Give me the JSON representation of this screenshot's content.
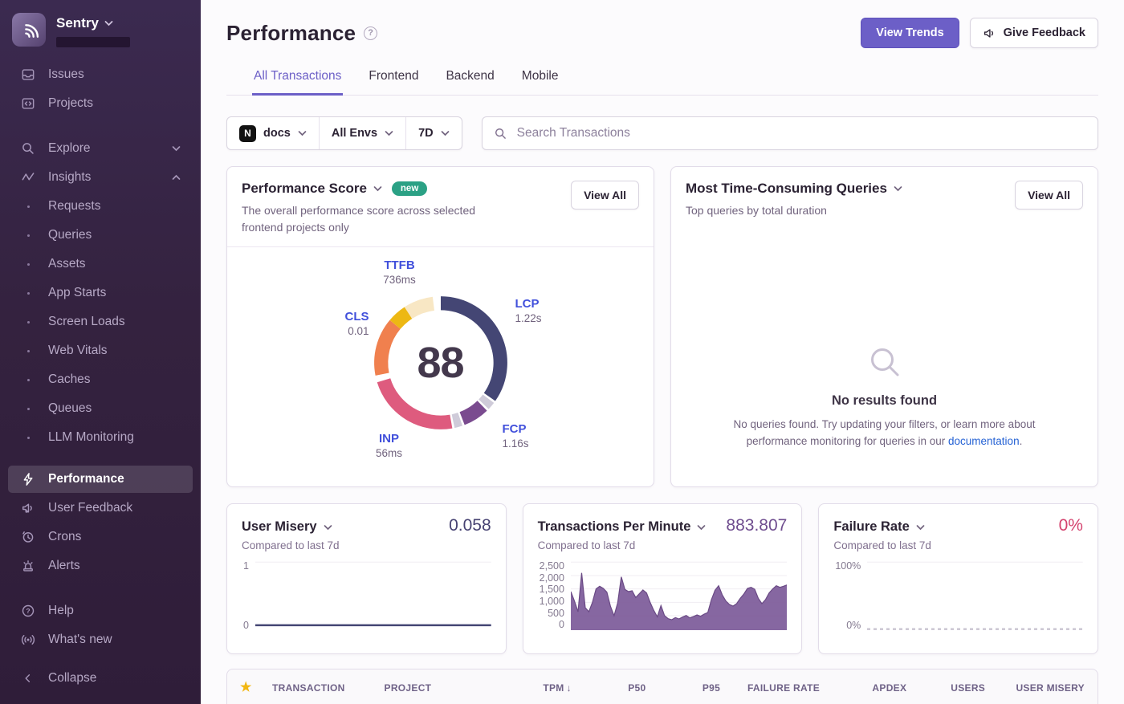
{
  "colors": {
    "accent_purple": "#6c5fc7",
    "sidebar_bg": "#34223f",
    "link_blue": "#2562d4",
    "vital_label_blue": "#4150db",
    "badge_new_teal": "#2ba185",
    "star_gold": "#f2b712",
    "user_misery_value": "#464272",
    "tpm_value": "#6f4d8f",
    "failure_rate_value": "#d4426e"
  },
  "sidebar": {
    "brand": "Sentry",
    "items_top": [
      {
        "label": "Issues"
      },
      {
        "label": "Projects"
      }
    ],
    "explore_label": "Explore",
    "insights_label": "Insights",
    "insights_children": [
      "Requests",
      "Queries",
      "Assets",
      "App Starts",
      "Screen Loads",
      "Web Vitals",
      "Caches",
      "Queues",
      "LLM Monitoring"
    ],
    "items_mid": [
      "Performance",
      "User Feedback",
      "Crons",
      "Alerts"
    ],
    "items_bottom": [
      "Help",
      "What's new"
    ],
    "collapse_label": "Collapse"
  },
  "header": {
    "title": "Performance",
    "view_trends": "View Trends",
    "give_feedback": "Give Feedback",
    "tabs": [
      "All Transactions",
      "Frontend",
      "Backend",
      "Mobile"
    ],
    "active_tab": "All Transactions"
  },
  "filters": {
    "project": "docs",
    "project_logo_letter": "N",
    "environment": "All Envs",
    "date_range": "7D",
    "search_placeholder": "Search Transactions"
  },
  "score_card": {
    "title": "Performance Score",
    "badge": "new",
    "description": "The overall performance score across selected frontend projects only",
    "view_all": "View All",
    "score": "88",
    "vitals": [
      {
        "name": "TTFB",
        "value": "736ms"
      },
      {
        "name": "LCP",
        "value": "1.22s"
      },
      {
        "name": "CLS",
        "value": "0.01"
      },
      {
        "name": "INP",
        "value": "56ms"
      },
      {
        "name": "FCP",
        "value": "1.16s"
      }
    ]
  },
  "queries_card": {
    "title": "Most Time-Consuming Queries",
    "subtitle": "Top queries by total duration",
    "view_all": "View All",
    "empty_title": "No results found",
    "empty_text_1": "No queries found. Try updating your filters, or learn more about performance monitoring for queries in our ",
    "empty_link": "documentation",
    "empty_text_2": "."
  },
  "mini_cards": [
    {
      "title": "User Misery",
      "value": "0.058",
      "value_color": "#464272",
      "subtitle": "Compared to last 7d",
      "y_top": "1",
      "y_bottom": "0"
    },
    {
      "title": "Transactions Per Minute",
      "value": "883.807",
      "value_color": "#6f4d8f",
      "subtitle": "Compared to last 7d"
    },
    {
      "title": "Failure Rate",
      "value": "0%",
      "value_color": "#d4426e",
      "subtitle": "Compared to last 7d",
      "y_top": "100%",
      "y_bottom": "0%"
    }
  ],
  "table": {
    "columns": [
      "TRANSACTION",
      "PROJECT",
      "TPM",
      "P50",
      "P95",
      "FAILURE RATE",
      "APDEX",
      "USERS",
      "USER MISERY"
    ],
    "sorted_column": "TPM",
    "sort_direction": "desc"
  },
  "chart_data": [
    {
      "type": "pie",
      "title": "Performance Score",
      "center_value": 88,
      "segments": [
        {
          "metric": "LCP",
          "value": "1.22s",
          "start": 0,
          "end": 125,
          "color": "#444674"
        },
        {
          "metric": "separator",
          "start": 127,
          "end": 134,
          "color": "#cfcbd9"
        },
        {
          "metric": "FCP",
          "value": "1.16s",
          "start": 136,
          "end": 159,
          "color": "#7a4b8f"
        },
        {
          "metric": "separator",
          "start": 161,
          "end": 168,
          "color": "#cfcbd9"
        },
        {
          "metric": "INP",
          "value": "56ms",
          "start": 170,
          "end": 253,
          "color": "#de5b7e"
        },
        {
          "metric": "CLS",
          "value": "0.01",
          "start": 259,
          "end": 310,
          "color": "#f0804e"
        },
        {
          "metric": "TTFB",
          "value": "736ms",
          "start": 310,
          "end": 327,
          "color": "#edb813"
        },
        {
          "metric": "TTFB-light",
          "start": 327,
          "end": 353,
          "color": "#f8e7c4"
        }
      ]
    },
    {
      "type": "line",
      "title": "User Misery",
      "ylim": [
        0,
        1
      ],
      "grid_values": [
        1
      ],
      "values": [
        0.058,
        0.058,
        0.058,
        0.058,
        0.058,
        0.058,
        0.058,
        0.058
      ],
      "color": "#444674"
    },
    {
      "type": "area",
      "title": "Transactions Per Minute",
      "ylim": [
        0,
        2500
      ],
      "yticks": [
        "2,500",
        "2,000",
        "1,500",
        "1,000",
        "500",
        "0"
      ],
      "grid_values": [
        500,
        1000,
        1500,
        2000,
        2500
      ],
      "values": [
        1400,
        1050,
        650,
        2100,
        800,
        650,
        1000,
        1500,
        1600,
        1520,
        1380,
        850,
        500,
        980,
        1950,
        1480,
        1400,
        1430,
        1180,
        1320,
        1460,
        1350,
        1000,
        700,
        460,
        880,
        500,
        390,
        350,
        430,
        380,
        450,
        510,
        420,
        470,
        530,
        480,
        560,
        620,
        1100,
        1450,
        1620,
        1280,
        1050,
        920,
        860,
        950,
        1150,
        1310,
        1520,
        1560,
        1490,
        1150,
        950,
        1100,
        1350,
        1500,
        1620,
        1560,
        1600,
        1650
      ],
      "color": "#7c5a99",
      "stroke": "#6a4a85"
    },
    {
      "type": "line",
      "title": "Failure Rate",
      "ylim": [
        0,
        1
      ],
      "grid_values": [
        1
      ],
      "values": [
        0,
        0,
        0,
        0,
        0,
        0,
        0,
        0
      ],
      "style": "dashed",
      "color": "#c9c4d1"
    }
  ]
}
